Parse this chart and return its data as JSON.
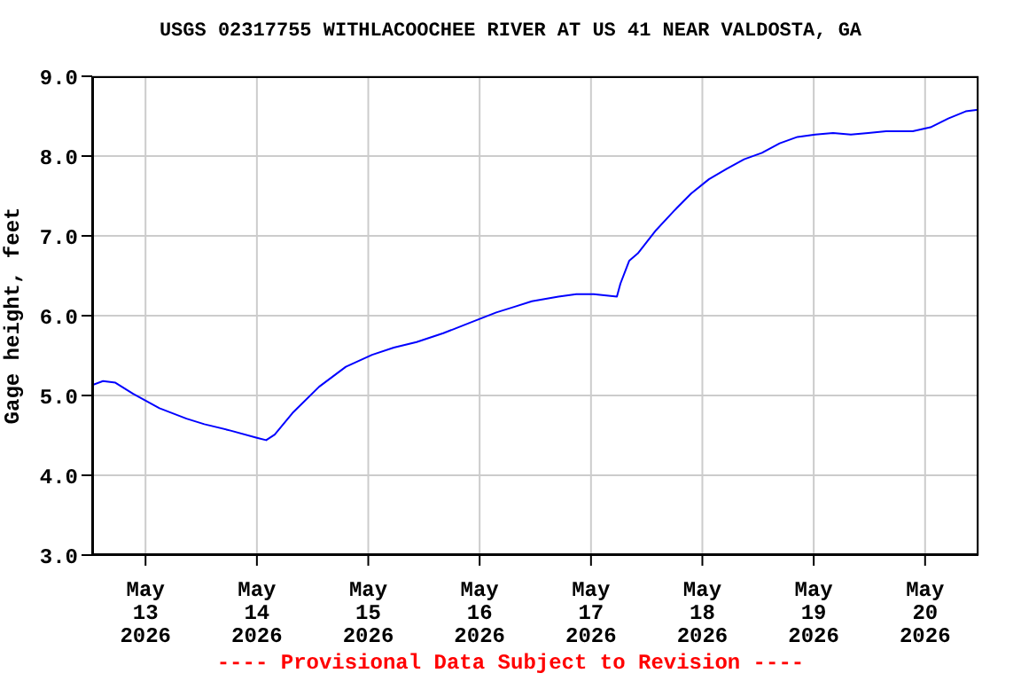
{
  "chart_data": {
    "type": "line",
    "title": "USGS 02317755 WITHLACOOCHEE RIVER AT US 41 NEAR VALDOSTA, GA",
    "ylabel": "Gage height, feet",
    "annotations": [
      "---- Provisional Data Subject to Revision ----"
    ],
    "x": [
      "2026-05-12T12:30",
      "2026-05-12T14:50",
      "2026-05-12T17:30",
      "2026-05-12T21:20",
      "2026-05-13T03:00",
      "2026-05-13T08:50",
      "2026-05-13T12:40",
      "2026-05-13T18:20",
      "2026-05-14T00:00",
      "2026-05-14T02:00",
      "2026-05-14T03:50",
      "2026-05-14T07:40",
      "2026-05-14T13:25",
      "2026-05-14T19:10",
      "2026-05-15T00:50",
      "2026-05-15T05:30",
      "2026-05-15T10:25",
      "2026-05-15T16:10",
      "2026-05-15T21:50",
      "2026-05-16T03:35",
      "2026-05-16T07:25",
      "2026-05-16T11:15",
      "2026-05-16T17:00",
      "2026-05-16T20:50",
      "2026-05-17T00:35",
      "2026-05-17T05:35",
      "2026-05-17T06:20",
      "2026-05-17T08:15",
      "2026-05-17T10:05",
      "2026-05-17T14:00",
      "2026-05-17T17:50",
      "2026-05-17T21:35",
      "2026-05-18T01:25",
      "2026-05-18T05:15",
      "2026-05-18T09:00",
      "2026-05-18T12:50",
      "2026-05-18T16:40",
      "2026-05-18T20:30",
      "2026-05-19T00:20",
      "2026-05-19T04:10",
      "2026-05-19T08:00",
      "2026-05-19T11:45",
      "2026-05-19T15:35",
      "2026-05-19T21:20",
      "2026-05-20T01:10",
      "2026-05-20T05:00",
      "2026-05-20T08:45",
      "2026-05-20T11:25"
    ],
    "series": [
      {
        "color": "#0000ff",
        "values": [
          5.13,
          5.18,
          5.16,
          5.02,
          4.84,
          4.71,
          4.64,
          4.56,
          4.47,
          4.44,
          4.51,
          4.78,
          5.11,
          5.36,
          5.51,
          5.6,
          5.67,
          5.78,
          5.91,
          6.04,
          6.11,
          6.18,
          6.24,
          6.27,
          6.27,
          6.24,
          6.4,
          6.69,
          6.78,
          7.07,
          7.31,
          7.53,
          7.71,
          7.84,
          7.96,
          8.04,
          8.16,
          8.24,
          8.27,
          8.29,
          8.27,
          8.29,
          8.31,
          8.31,
          8.36,
          8.47,
          8.56,
          8.58
        ]
      }
    ],
    "xlim": [
      "2026-05-12T12:30",
      "2026-05-20T11:30"
    ],
    "xticks": [
      {
        "value": "2026-05-13",
        "label": "May\n13\n2026"
      },
      {
        "value": "2026-05-14",
        "label": "May\n14\n2026"
      },
      {
        "value": "2026-05-15",
        "label": "May\n15\n2026"
      },
      {
        "value": "2026-05-16",
        "label": "May\n16\n2026"
      },
      {
        "value": "2026-05-17",
        "label": "May\n17\n2026"
      },
      {
        "value": "2026-05-18",
        "label": "May\n18\n2026"
      },
      {
        "value": "2026-05-19",
        "label": "May\n19\n2026"
      },
      {
        "value": "2026-05-20",
        "label": "May\n20\n2026"
      }
    ],
    "ylim": [
      3,
      9
    ],
    "yticks": [
      {
        "value": 3,
        "label": "3.0"
      },
      {
        "value": 4,
        "label": "4.0"
      },
      {
        "value": 5,
        "label": "5.0"
      },
      {
        "value": 6,
        "label": "6.0"
      },
      {
        "value": 7,
        "label": "7.0"
      },
      {
        "value": 8,
        "label": "8.0"
      },
      {
        "value": 9,
        "label": "9.0"
      }
    ],
    "grid": true
  }
}
